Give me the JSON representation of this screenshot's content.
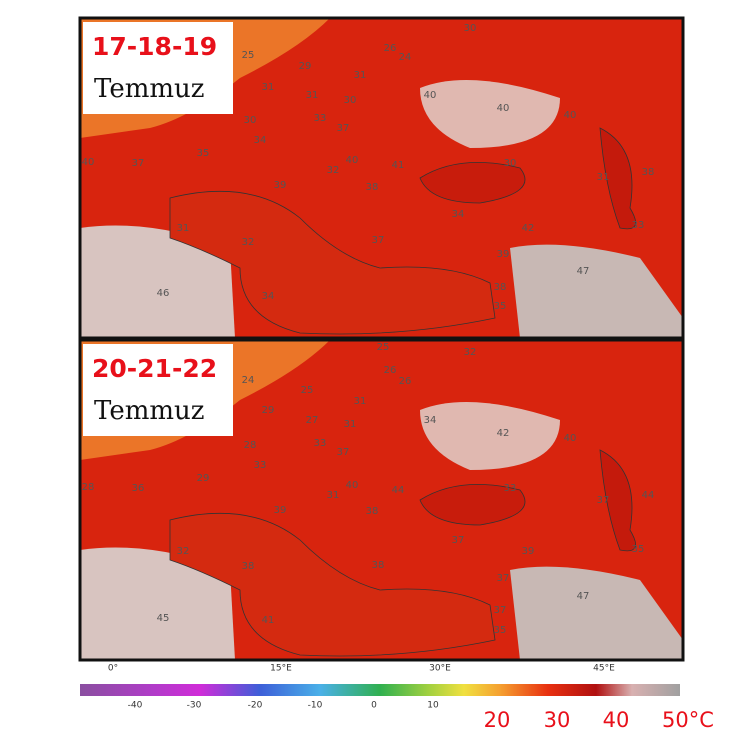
{
  "panels": [
    {
      "title": "17-18-19",
      "subtitle": "Temmuz",
      "labels": [
        "30",
        "26",
        "24",
        "25",
        "29",
        "31",
        "31",
        "31",
        "30",
        "40",
        "40",
        "40",
        "33",
        "37",
        "30",
        "34",
        "35",
        "37",
        "40",
        "40",
        "32",
        "41",
        "30",
        "31",
        "38",
        "39",
        "38",
        "34",
        "42",
        "33",
        "31",
        "32",
        "37",
        "39",
        "47",
        "46",
        "34",
        "38",
        "35"
      ]
    },
    {
      "title": "20-21-22",
      "subtitle": "Temmuz",
      "labels": [
        "25",
        "32",
        "26",
        "26",
        "24",
        "25",
        "31",
        "29",
        "27",
        "31",
        "34",
        "42",
        "40",
        "33",
        "37",
        "28",
        "33",
        "29",
        "36",
        "28",
        "40",
        "31",
        "44",
        "33",
        "37",
        "44",
        "39",
        "38",
        "37",
        "39",
        "35",
        "32",
        "38",
        "38",
        "37",
        "47",
        "45",
        "41",
        "37",
        "35"
      ]
    }
  ],
  "longitudes": [
    "0°",
    "15°E",
    "30°E",
    "45°E"
  ],
  "colorbar": {
    "ticks": [
      "-40",
      "-30",
      "-20",
      "-10",
      "0",
      "10"
    ],
    "big_labels": [
      "20",
      "30",
      "40",
      "50°C"
    ]
  }
}
